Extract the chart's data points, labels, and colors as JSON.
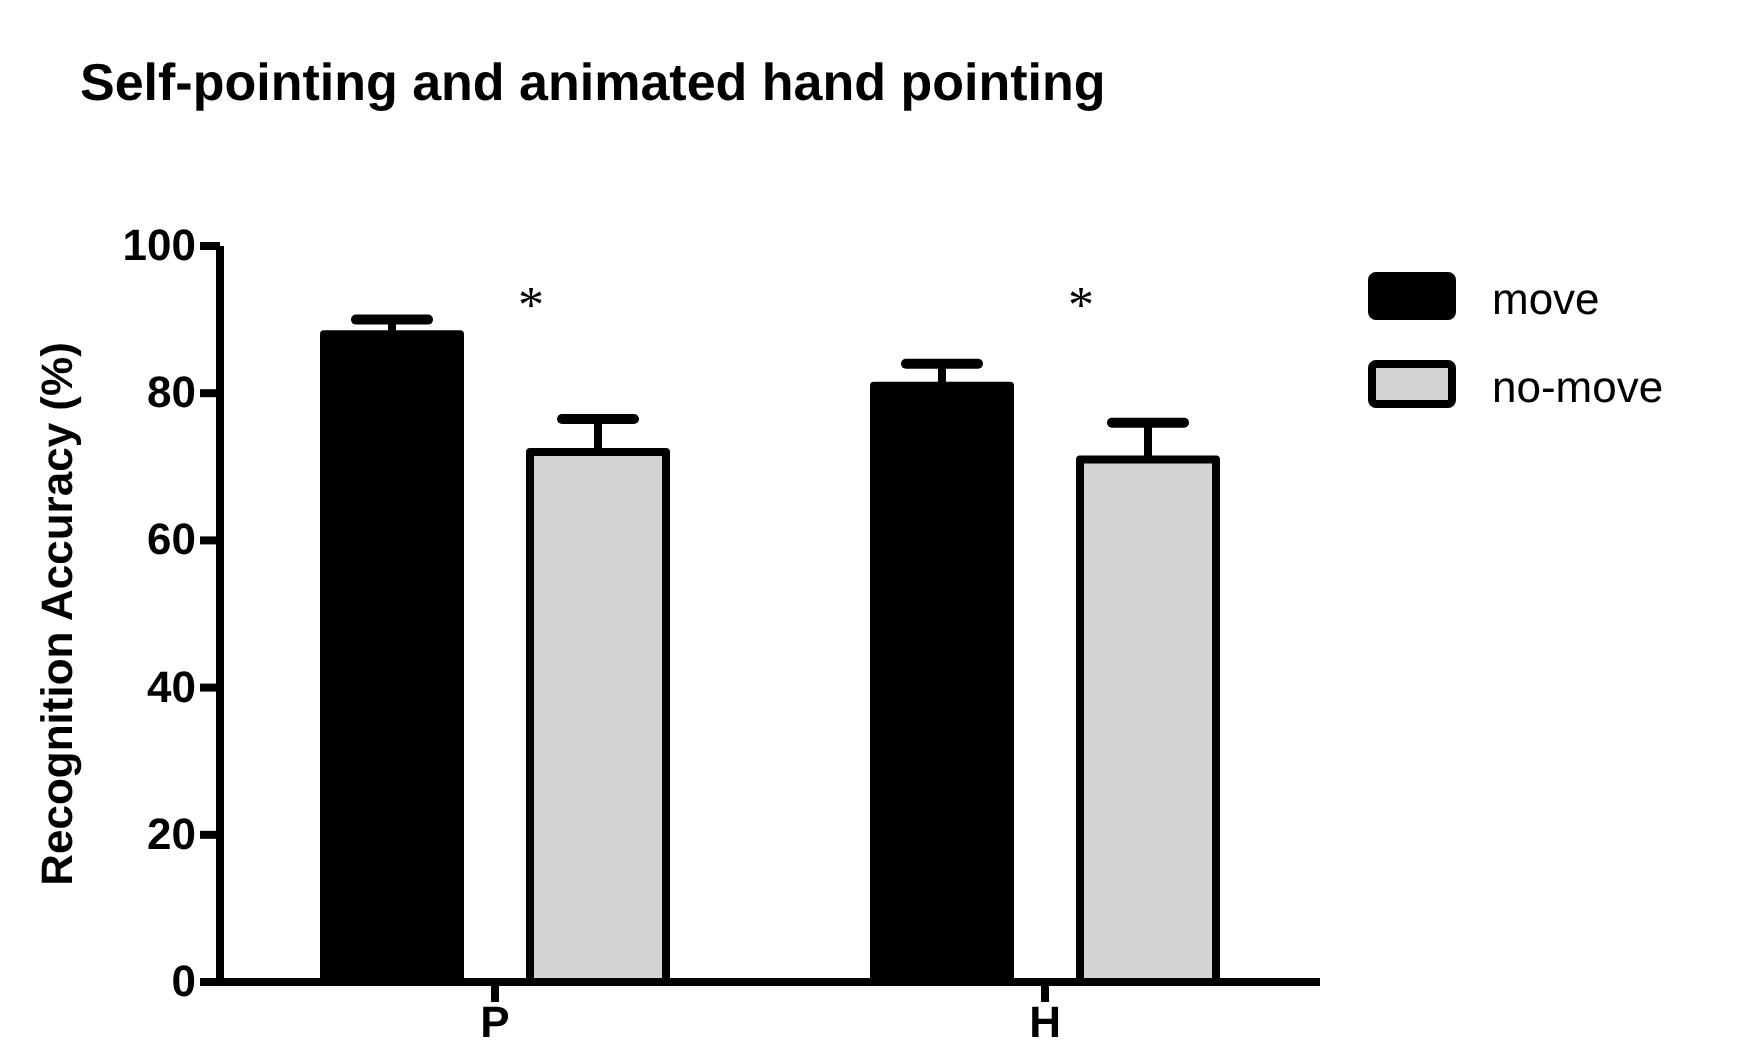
{
  "chart_data": {
    "type": "bar",
    "title": "Self-pointing and animated hand pointing",
    "ylabel": "Recognition Accuracy (%)",
    "categories": [
      "P",
      "H"
    ],
    "series": [
      {
        "name": "move",
        "color": "#000000",
        "values": [
          88,
          81
        ],
        "errors": [
          [
            88,
            90
          ],
          [
            81,
            84
          ]
        ]
      },
      {
        "name": "no-move",
        "color": "#d3d3d3",
        "values": [
          72,
          71
        ],
        "errors": [
          [
            72,
            76.5
          ],
          [
            71,
            76
          ]
        ]
      }
    ],
    "ylim": [
      0,
      100
    ],
    "yticks": [
      0,
      20,
      40,
      60,
      80,
      100
    ],
    "grid": false,
    "legend": "right",
    "annotations": [
      "*",
      "*"
    ]
  }
}
